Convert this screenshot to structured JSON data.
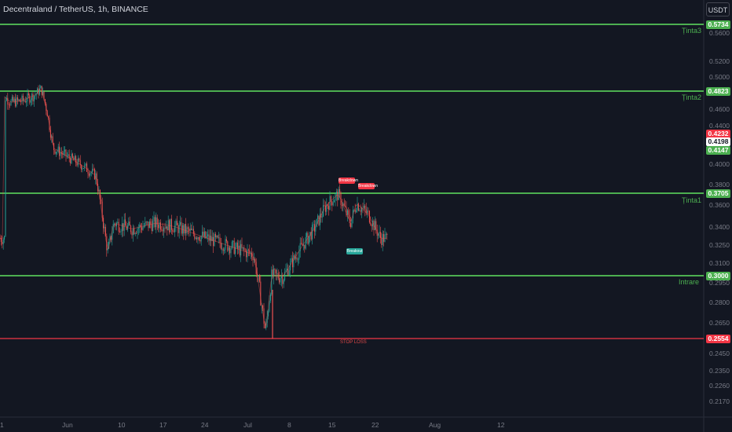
{
  "header": {
    "title": "Decentraland / TetherUS, 1h, BINANCE",
    "currency": "USDT"
  },
  "price_axis": {
    "ticks": [
      "0.5600",
      "0.5200",
      "0.5000",
      "0.4600",
      "0.4400",
      "0.4000",
      "0.3800",
      "0.3600",
      "0.3400",
      "0.3250",
      "0.3100",
      "0.2950",
      "0.2800",
      "0.2650",
      "0.2450",
      "0.2350",
      "0.2260",
      "0.2170"
    ],
    "labels": [
      {
        "value": "0.5734",
        "color": "#4caf50"
      },
      {
        "value": "0.4823",
        "color": "#4caf50"
      },
      {
        "value": "0.4232",
        "color": "#f23645"
      },
      {
        "value": "0.4198",
        "color": "#ffffff"
      },
      {
        "value": "0.4147",
        "color": "#4caf50"
      },
      {
        "value": "0.3705",
        "color": "#4caf50"
      },
      {
        "value": "0.3000",
        "color": "#4caf50"
      },
      {
        "value": "0.2554",
        "color": "#f23645"
      }
    ]
  },
  "time_axis": {
    "ticks": [
      "1",
      "Jun",
      "10",
      "17",
      "24",
      "Jul",
      "8",
      "15",
      "22",
      "Aug",
      "12"
    ]
  },
  "levels": [
    {
      "name": "Ținta3",
      "price": 0.5734,
      "color": "#4caf50"
    },
    {
      "name": "Ținta2",
      "price": 0.4823,
      "color": "#4caf50"
    },
    {
      "name": "Ținta1",
      "price": 0.3705,
      "color": "#4caf50"
    },
    {
      "name": "Intrare",
      "price": 0.3,
      "color": "#4caf50"
    },
    {
      "name": "STOP LOSS",
      "price": 0.2554,
      "color": "#f23645"
    }
  ],
  "signals": [
    {
      "label": "Breakdown",
      "color": "#f23645"
    },
    {
      "label": "Breakdown",
      "color": "#f23645"
    },
    {
      "label": "Breakout",
      "color": "#26a69a"
    }
  ],
  "colors": {
    "up": "#26a69a",
    "down": "#ef5350",
    "background": "#131722"
  },
  "chart_data": {
    "type": "candlestick",
    "symbol": "Decentraland / TetherUS",
    "interval": "1h",
    "price_path": [
      {
        "t": "May 31",
        "p": 0.476
      },
      {
        "t": "Jun 2",
        "p": 0.47
      },
      {
        "t": "Jun 4",
        "p": 0.472
      },
      {
        "t": "Jun 6",
        "p": 0.478
      },
      {
        "t": "Jun 7",
        "p": 0.486
      },
      {
        "t": "Jun 8",
        "p": 0.46
      },
      {
        "t": "Jun 9",
        "p": 0.42
      },
      {
        "t": "Jun 11",
        "p": 0.412
      },
      {
        "t": "Jun 14",
        "p": 0.4
      },
      {
        "t": "Jun 16",
        "p": 0.39
      },
      {
        "t": "Jun 18",
        "p": 0.32
      },
      {
        "t": "Jun 19",
        "p": 0.345
      },
      {
        "t": "Jun 22",
        "p": 0.34
      },
      {
        "t": "Jun 26",
        "p": 0.345
      },
      {
        "t": "Jun 29",
        "p": 0.342
      },
      {
        "t": "Jul 2",
        "p": 0.318
      },
      {
        "t": "Jul 3",
        "p": 0.29
      },
      {
        "t": "Jul 4",
        "p": 0.26
      },
      {
        "t": "Jul 5",
        "p": 0.3
      },
      {
        "t": "Jul 7",
        "p": 0.3
      },
      {
        "t": "Jul 10",
        "p": 0.325
      },
      {
        "t": "Jul 12",
        "p": 0.34
      },
      {
        "t": "Jul 14",
        "p": 0.36
      },
      {
        "t": "Jul 16",
        "p": 0.37
      },
      {
        "t": "Jul 18",
        "p": 0.345
      },
      {
        "t": "Jul 19",
        "p": 0.362
      },
      {
        "t": "Jul 21",
        "p": 0.352
      },
      {
        "t": "Jul 23",
        "p": 0.332
      }
    ]
  }
}
